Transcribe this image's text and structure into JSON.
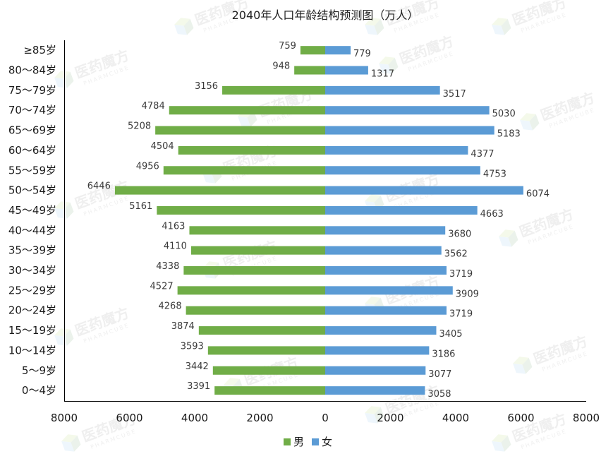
{
  "chart_data": {
    "type": "bar",
    "orientation": "horizontal-butterfly",
    "title": "2040年人口年龄结构预测图（万人）",
    "categories": [
      "≥85岁",
      "80～84岁",
      "75～79岁",
      "70～74岁",
      "65～69岁",
      "60～64岁",
      "55～59岁",
      "50～54岁",
      "45～49岁",
      "40～44岁",
      "35～39岁",
      "30～34岁",
      "25～29岁",
      "20～24岁",
      "15～19岁",
      "10～14岁",
      "5～9岁",
      "0～4岁"
    ],
    "series": [
      {
        "name": "男",
        "color": "#70ad47",
        "side": "left",
        "values": [
          759,
          948,
          3156,
          4784,
          5208,
          4504,
          4956,
          6446,
          5161,
          4163,
          4110,
          4338,
          4527,
          4268,
          3874,
          3593,
          3442,
          3391
        ]
      },
      {
        "name": "女",
        "color": "#5b9bd5",
        "side": "right",
        "values": [
          779,
          1317,
          3517,
          5030,
          5183,
          4377,
          4753,
          6074,
          4663,
          3680,
          3562,
          3719,
          3909,
          3719,
          3405,
          3186,
          3077,
          3058
        ]
      }
    ],
    "xlim": [
      -8000,
      8000
    ],
    "x_ticks": [
      "8000",
      "6000",
      "4000",
      "2000",
      "0",
      "2000",
      "4000",
      "6000",
      "8000"
    ],
    "x_tick_values": [
      -8000,
      -6000,
      -4000,
      -2000,
      0,
      2000,
      4000,
      6000,
      8000
    ],
    "grid": false,
    "legend_position": "bottom-center",
    "data_labels": true
  },
  "watermark": {
    "text_cn": "医药魔方",
    "text_en": "PHARMCUBE"
  }
}
